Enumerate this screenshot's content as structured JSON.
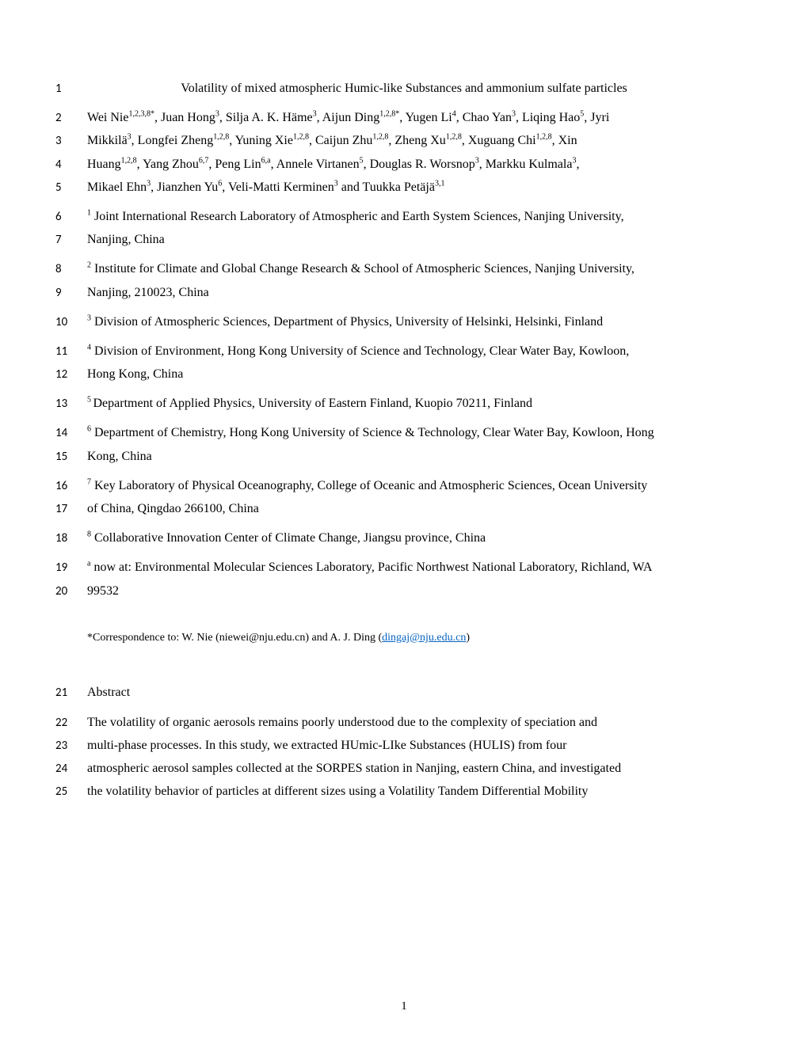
{
  "page": {
    "number": "1",
    "background_color": "#ffffff",
    "text_color": "#000000",
    "link_color": "#0563c1",
    "body_font": "Times New Roman",
    "lineno_font": "Calibri",
    "body_fontsize_pt": 12,
    "lineno_fontsize_pt": 11
  },
  "lines": {
    "l1": {
      "no": "1",
      "text": "Volatility of mixed atmospheric Humic-like Substances and ammonium sulfate particles"
    },
    "l2": {
      "no": "2"
    },
    "l3": {
      "no": "3"
    },
    "l4": {
      "no": "4"
    },
    "l5": {
      "no": "5"
    },
    "l6": {
      "no": "6"
    },
    "l7": {
      "no": "7",
      "text": "Nanjing, China"
    },
    "l8": {
      "no": "8"
    },
    "l9": {
      "no": "9",
      "text": "Nanjing, 210023, China"
    },
    "l10": {
      "no": "10"
    },
    "l11": {
      "no": "11"
    },
    "l12": {
      "no": "12",
      "text": "Hong Kong, China"
    },
    "l13": {
      "no": "13"
    },
    "l14": {
      "no": "14"
    },
    "l15": {
      "no": "15",
      "text": "Kong, China"
    },
    "l16": {
      "no": "16"
    },
    "l17": {
      "no": "17",
      "text": "of China, Qingdao 266100, China"
    },
    "l18": {
      "no": "18"
    },
    "l19": {
      "no": "19"
    },
    "l20": {
      "no": "20",
      "text": "99532"
    },
    "l21": {
      "no": "21",
      "text": "Abstract"
    },
    "l22": {
      "no": "22",
      "text": "The volatility of organic aerosols remains poorly understood due to the complexity of speciation and"
    },
    "l23": {
      "no": "23",
      "text": "multi-phase processes. In this study, we extracted HUmic-LIke Substances (HULIS) from four"
    },
    "l24": {
      "no": "24",
      "text": "atmospheric aerosol samples collected at the SORPES station in Nanjing, eastern China, and investigated"
    },
    "l25": {
      "no": "25",
      "text": "the volatility behavior of particles at different sizes using a Volatility Tandem Differential Mobility"
    }
  },
  "authors_html": {
    "l2": "Wei Nie<sup>1,2,3,8*</sup>, Juan Hong<sup>3</sup>, Silja A. K. Häme<sup>3</sup>, Aijun Ding<sup>1,2,8*</sup>, Yugen Li<sup>4</sup>, Chao Yan<sup>3</sup>, Liqing Hao<sup>5</sup>, Jyri",
    "l3": "Mikkilä<sup>3</sup>, Longfei Zheng<sup>1,2,8</sup>, Yuning Xie<sup>1,2,8</sup>, Caijun Zhu<sup>1,2,8</sup>, Zheng Xu<sup>1,2,8</sup>, Xuguang Chi<sup>1,2,8</sup>, Xin",
    "l4": "Huang<sup>1,2,8</sup>, Yang Zhou<sup>6,7</sup>, Peng Lin<sup>6,a</sup>, Annele Virtanen<sup>5</sup>, Douglas R. Worsnop<sup>3</sup>, Markku Kulmala<sup>3</sup>,",
    "l5": "Mikael Ehn<sup>3</sup>, Jianzhen Yu<sup>6</sup>, Veli-Matti Kerminen<sup>3</sup> and Tuukka Petäjä<sup>3,1</sup>"
  },
  "affil_html": {
    "l6": "<sup>1</sup> Joint International Research Laboratory of Atmospheric and Earth System Sciences, Nanjing University,",
    "l8": "<sup>2</sup> Institute for Climate and Global Change Research & School of Atmospheric Sciences, Nanjing University,",
    "l10": "<sup>3</sup> Division of Atmospheric Sciences, Department of Physics, University of Helsinki, Helsinki, Finland",
    "l11": "<sup>4</sup> Division of Environment, Hong Kong University of Science and Technology, Clear Water Bay, Kowloon,",
    "l13": "<sup>5 </sup>Department of Applied Physics, University of Eastern Finland, Kuopio 70211, Finland",
    "l14": "<sup>6</sup> Department of Chemistry, Hong Kong University of Science &amp; Technology, Clear Water Bay, Kowloon, Hong",
    "l16": "<sup>7</sup> Key Laboratory of Physical Oceanography, College of Oceanic and Atmospheric Sciences, Ocean University",
    "l18": "<sup>8</sup> Collaborative Innovation Center of Climate Change, Jiangsu province, China",
    "l19": "<sup>a</sup> now at: Environmental Molecular Sciences Laboratory, Pacific Northwest National Laboratory, Richland, WA"
  },
  "correspondence": {
    "prefix": "*Correspondence to: W. Nie (niewei@nju.edu.cn) and A. J. Ding (",
    "link_text": "dingaj@nju.edu.cn",
    "suffix": ")"
  }
}
